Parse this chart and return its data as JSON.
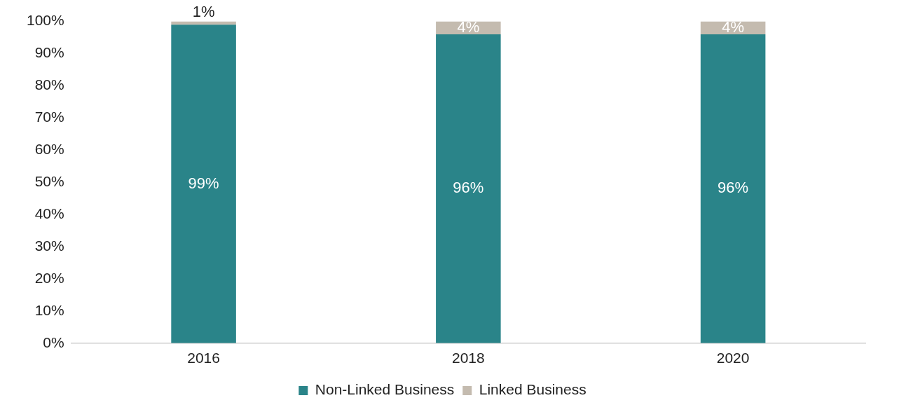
{
  "chart_data": {
    "type": "bar",
    "stacked": true,
    "categories": [
      "2016",
      "2018",
      "2020"
    ],
    "series": [
      {
        "name": "Non-Linked Business",
        "color": "#2a8489",
        "values": [
          99,
          96,
          96
        ],
        "value_labels": [
          "99%",
          "96%",
          "96%"
        ]
      },
      {
        "name": "Linked Business",
        "color": "#c4bbaf",
        "values": [
          1,
          4,
          4
        ],
        "value_labels": [
          "1%",
          "4%",
          "4%"
        ]
      }
    ],
    "ylim": [
      0,
      100
    ],
    "yticks": [
      {
        "value": 0,
        "label": "0%"
      },
      {
        "value": 10,
        "label": "10%"
      },
      {
        "value": 20,
        "label": "20%"
      },
      {
        "value": 30,
        "label": "30%"
      },
      {
        "value": 40,
        "label": "40%"
      },
      {
        "value": 50,
        "label": "50%"
      },
      {
        "value": 60,
        "label": "60%"
      },
      {
        "value": 70,
        "label": "70%"
      },
      {
        "value": 80,
        "label": "80%"
      },
      {
        "value": 90,
        "label": "90%"
      },
      {
        "value": 100,
        "label": "100%"
      }
    ],
    "grid": false,
    "legend": "bottom"
  }
}
